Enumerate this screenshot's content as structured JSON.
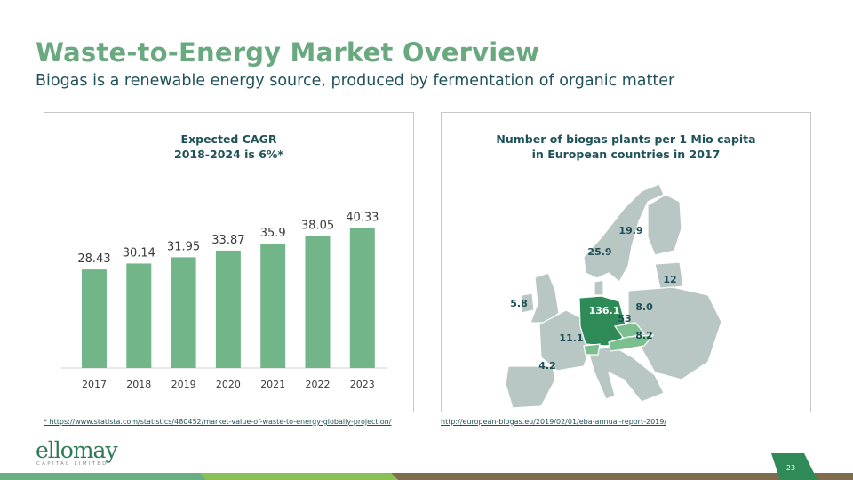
{
  "title": "Waste-to-Energy Market Overview",
  "subtitle": "Biogas is a renewable energy source, produced by fermentation of organic matter",
  "chart_data": [
    {
      "type": "bar",
      "title": "Expected CAGR\n2018-2024 is 6%*",
      "title_lines": [
        "Expected CAGR",
        "2018-2024 is 6%*"
      ],
      "categories": [
        "2017",
        "2018",
        "2019",
        "2020",
        "2021",
        "2022",
        "2023"
      ],
      "values": [
        28.43,
        30.14,
        31.95,
        33.87,
        35.9,
        38.05,
        40.33
      ],
      "value_labels": [
        "28.43",
        "30.14",
        "31.95",
        "33.87",
        "35.9",
        "38.05",
        "40.33"
      ],
      "ylim": [
        0,
        42
      ],
      "grid": false,
      "color": "#72b589"
    }
  ],
  "map": {
    "title_lines": [
      "Number of biogas plants per 1 Mio capita",
      "in European countries in 2017"
    ],
    "labels": [
      {
        "country": "Sweden",
        "value": "19.9"
      },
      {
        "country": "Norway",
        "value": "25.9"
      },
      {
        "country": "Latvia",
        "value": "12"
      },
      {
        "country": "Ireland",
        "value": "5.8"
      },
      {
        "country": "Germany",
        "value": "136.1"
      },
      {
        "country": "Poland",
        "value": "8.0"
      },
      {
        "country": "Czech Republic",
        "value": "53"
      },
      {
        "country": "Hungary",
        "value": "8.2"
      },
      {
        "country": "France",
        "value": "11.1"
      },
      {
        "country": "Spain",
        "value": "4.2"
      }
    ],
    "colors": {
      "base": "#b8c7c3",
      "highlight": "#2e8a57",
      "mid": "#7cbf8e",
      "label": "#1f4f55"
    }
  },
  "footnotes": {
    "left": "*  https://www.statista.com/statistics/480452/market-value-of-waste-to-energy-globally-projection/",
    "right": "http://european-biogas.eu/2019/02/01/eba-annual-report-2019/"
  },
  "logo": {
    "name": "ellomay",
    "sub": "CAPITAL LIMITED"
  },
  "page_number": "23"
}
